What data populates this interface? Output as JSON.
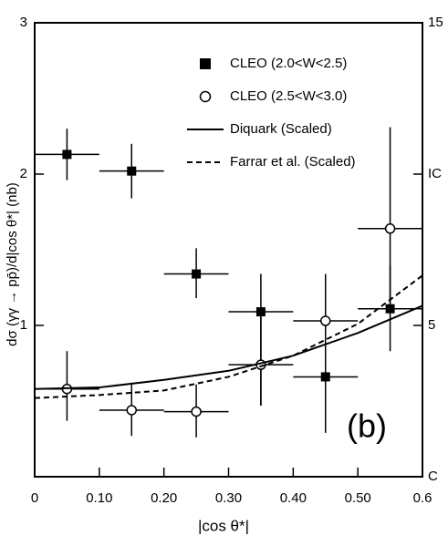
{
  "chart_data": {
    "type": "scatter",
    "y_label": "dσ (γγ → pp̄)/d|cos θ*| (nb)",
    "x_label": "|cos θ*|",
    "annotation": "(b)",
    "xlim": [
      0,
      0.6
    ],
    "xticks": [
      0,
      {
        "value": 0.1,
        "label": "0.10"
      },
      {
        "value": 0.2,
        "label": "0.20"
      },
      {
        "value": 0.3,
        "label": "0.30"
      },
      {
        "value": 0.4,
        "label": "0.40"
      },
      {
        "value": 0.5,
        "label": "0.50"
      },
      {
        "value": 0.6,
        "label": "0.6"
      }
    ],
    "ylim": [
      0,
      3
    ],
    "yticks": [
      1,
      2,
      3
    ],
    "y2lim": [
      0,
      15
    ],
    "y2ticks": [
      {
        "value": 0,
        "label": "C"
      },
      5,
      {
        "value": 10,
        "label": "IC"
      },
      15
    ],
    "series": [
      {
        "name": "CLEO (2.0<W<2.5)",
        "marker": "square",
        "color": "#000000",
        "xerr": 0.05,
        "x": [
          0.05,
          0.15,
          0.25,
          0.35,
          0.45,
          0.55
        ],
        "values": [
          2.13,
          2.02,
          1.34,
          1.09,
          0.66,
          1.11
        ],
        "errors_high": [
          0.17,
          0.18,
          0.17,
          0.25,
          0.42,
          0.29
        ],
        "errors_low": [
          0.17,
          0.18,
          0.16,
          0.62,
          0.37,
          0.28
        ]
      },
      {
        "name": "CLEO (2.5<W<3.0)",
        "marker": "circle",
        "color": "#000000",
        "xerr": 0.05,
        "x": [
          0.05,
          0.15,
          0.25,
          0.35,
          0.45,
          0.55
        ],
        "values": [
          0.58,
          0.44,
          0.43,
          0.74,
          1.03,
          1.64
        ],
        "errors_high": [
          0.25,
          0.17,
          0.18,
          0.36,
          0.31,
          0.67
        ],
        "errors_low": [
          0.21,
          0.17,
          0.17,
          0.27,
          0.32,
          0.54
        ]
      },
      {
        "name": "Diquark (Scaled)",
        "marker": "line",
        "dash": false,
        "color": "#000000",
        "x": [
          0,
          0.1,
          0.2,
          0.3,
          0.4,
          0.5,
          0.6
        ],
        "values": [
          0.58,
          0.59,
          0.64,
          0.7,
          0.8,
          0.95,
          1.13
        ]
      },
      {
        "name": "Farrar et al. (Scaled)",
        "marker": "line",
        "dash": true,
        "color": "#000000",
        "x": [
          0,
          0.1,
          0.2,
          0.3,
          0.4,
          0.5,
          0.6
        ],
        "values": [
          0.52,
          0.54,
          0.57,
          0.66,
          0.8,
          1.01,
          1.33
        ]
      }
    ]
  }
}
